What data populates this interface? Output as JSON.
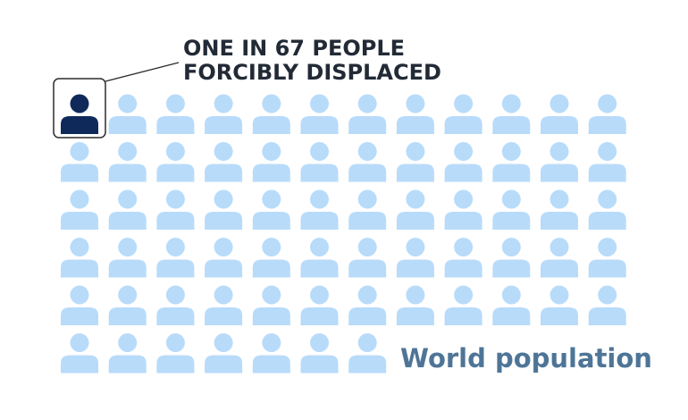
{
  "chart_data": {
    "type": "pictogram",
    "title_lines": [
      "ONE IN 67 PEOPLE",
      "FORCIBLY DISPLACED"
    ],
    "label": "World population",
    "ratio_text": "ONE IN 67",
    "rows": [
      12,
      12,
      12,
      12,
      12,
      7
    ],
    "total_icons": 67,
    "highlighted_icons": 1,
    "highlighted_position": {
      "row": 1,
      "column": 1
    },
    "colors": {
      "highlight": "#0f2a5a",
      "icon": "#b8dbfa",
      "highlight_border": "#2b2b2b",
      "title": "#222a36",
      "label": "#4e7597"
    },
    "icon": "person-icon"
  }
}
